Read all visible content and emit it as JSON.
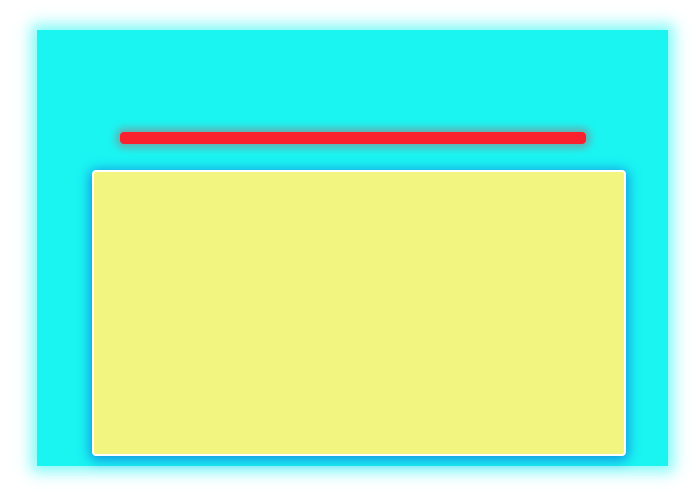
{
  "colors": {
    "page_background": "#ffffff",
    "panel": "#1af5f2",
    "accent_bar": "#f8212d",
    "card_fill": "#f2f57f",
    "card_border": "#ffffff",
    "card_shadow": "#146edc"
  }
}
